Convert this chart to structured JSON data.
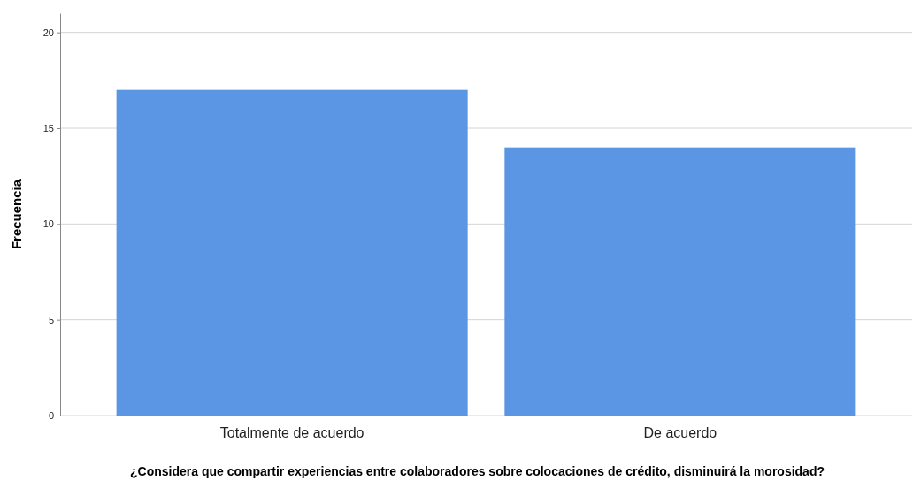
{
  "chart_data": {
    "type": "bar",
    "xlabel": "¿Considera que compartir experiencias entre colaboradores sobre colocaciones de crédito, disminuirá la morosidad?",
    "ylabel": "Frecuencia",
    "categories": [
      "Totalmente de acuerdo",
      "De acuerdo"
    ],
    "values": [
      17,
      14
    ],
    "color": "#5a96e3",
    "ylim": [
      0,
      21
    ],
    "yticks": [
      0,
      5,
      10,
      15,
      20
    ],
    "grid": "y"
  }
}
